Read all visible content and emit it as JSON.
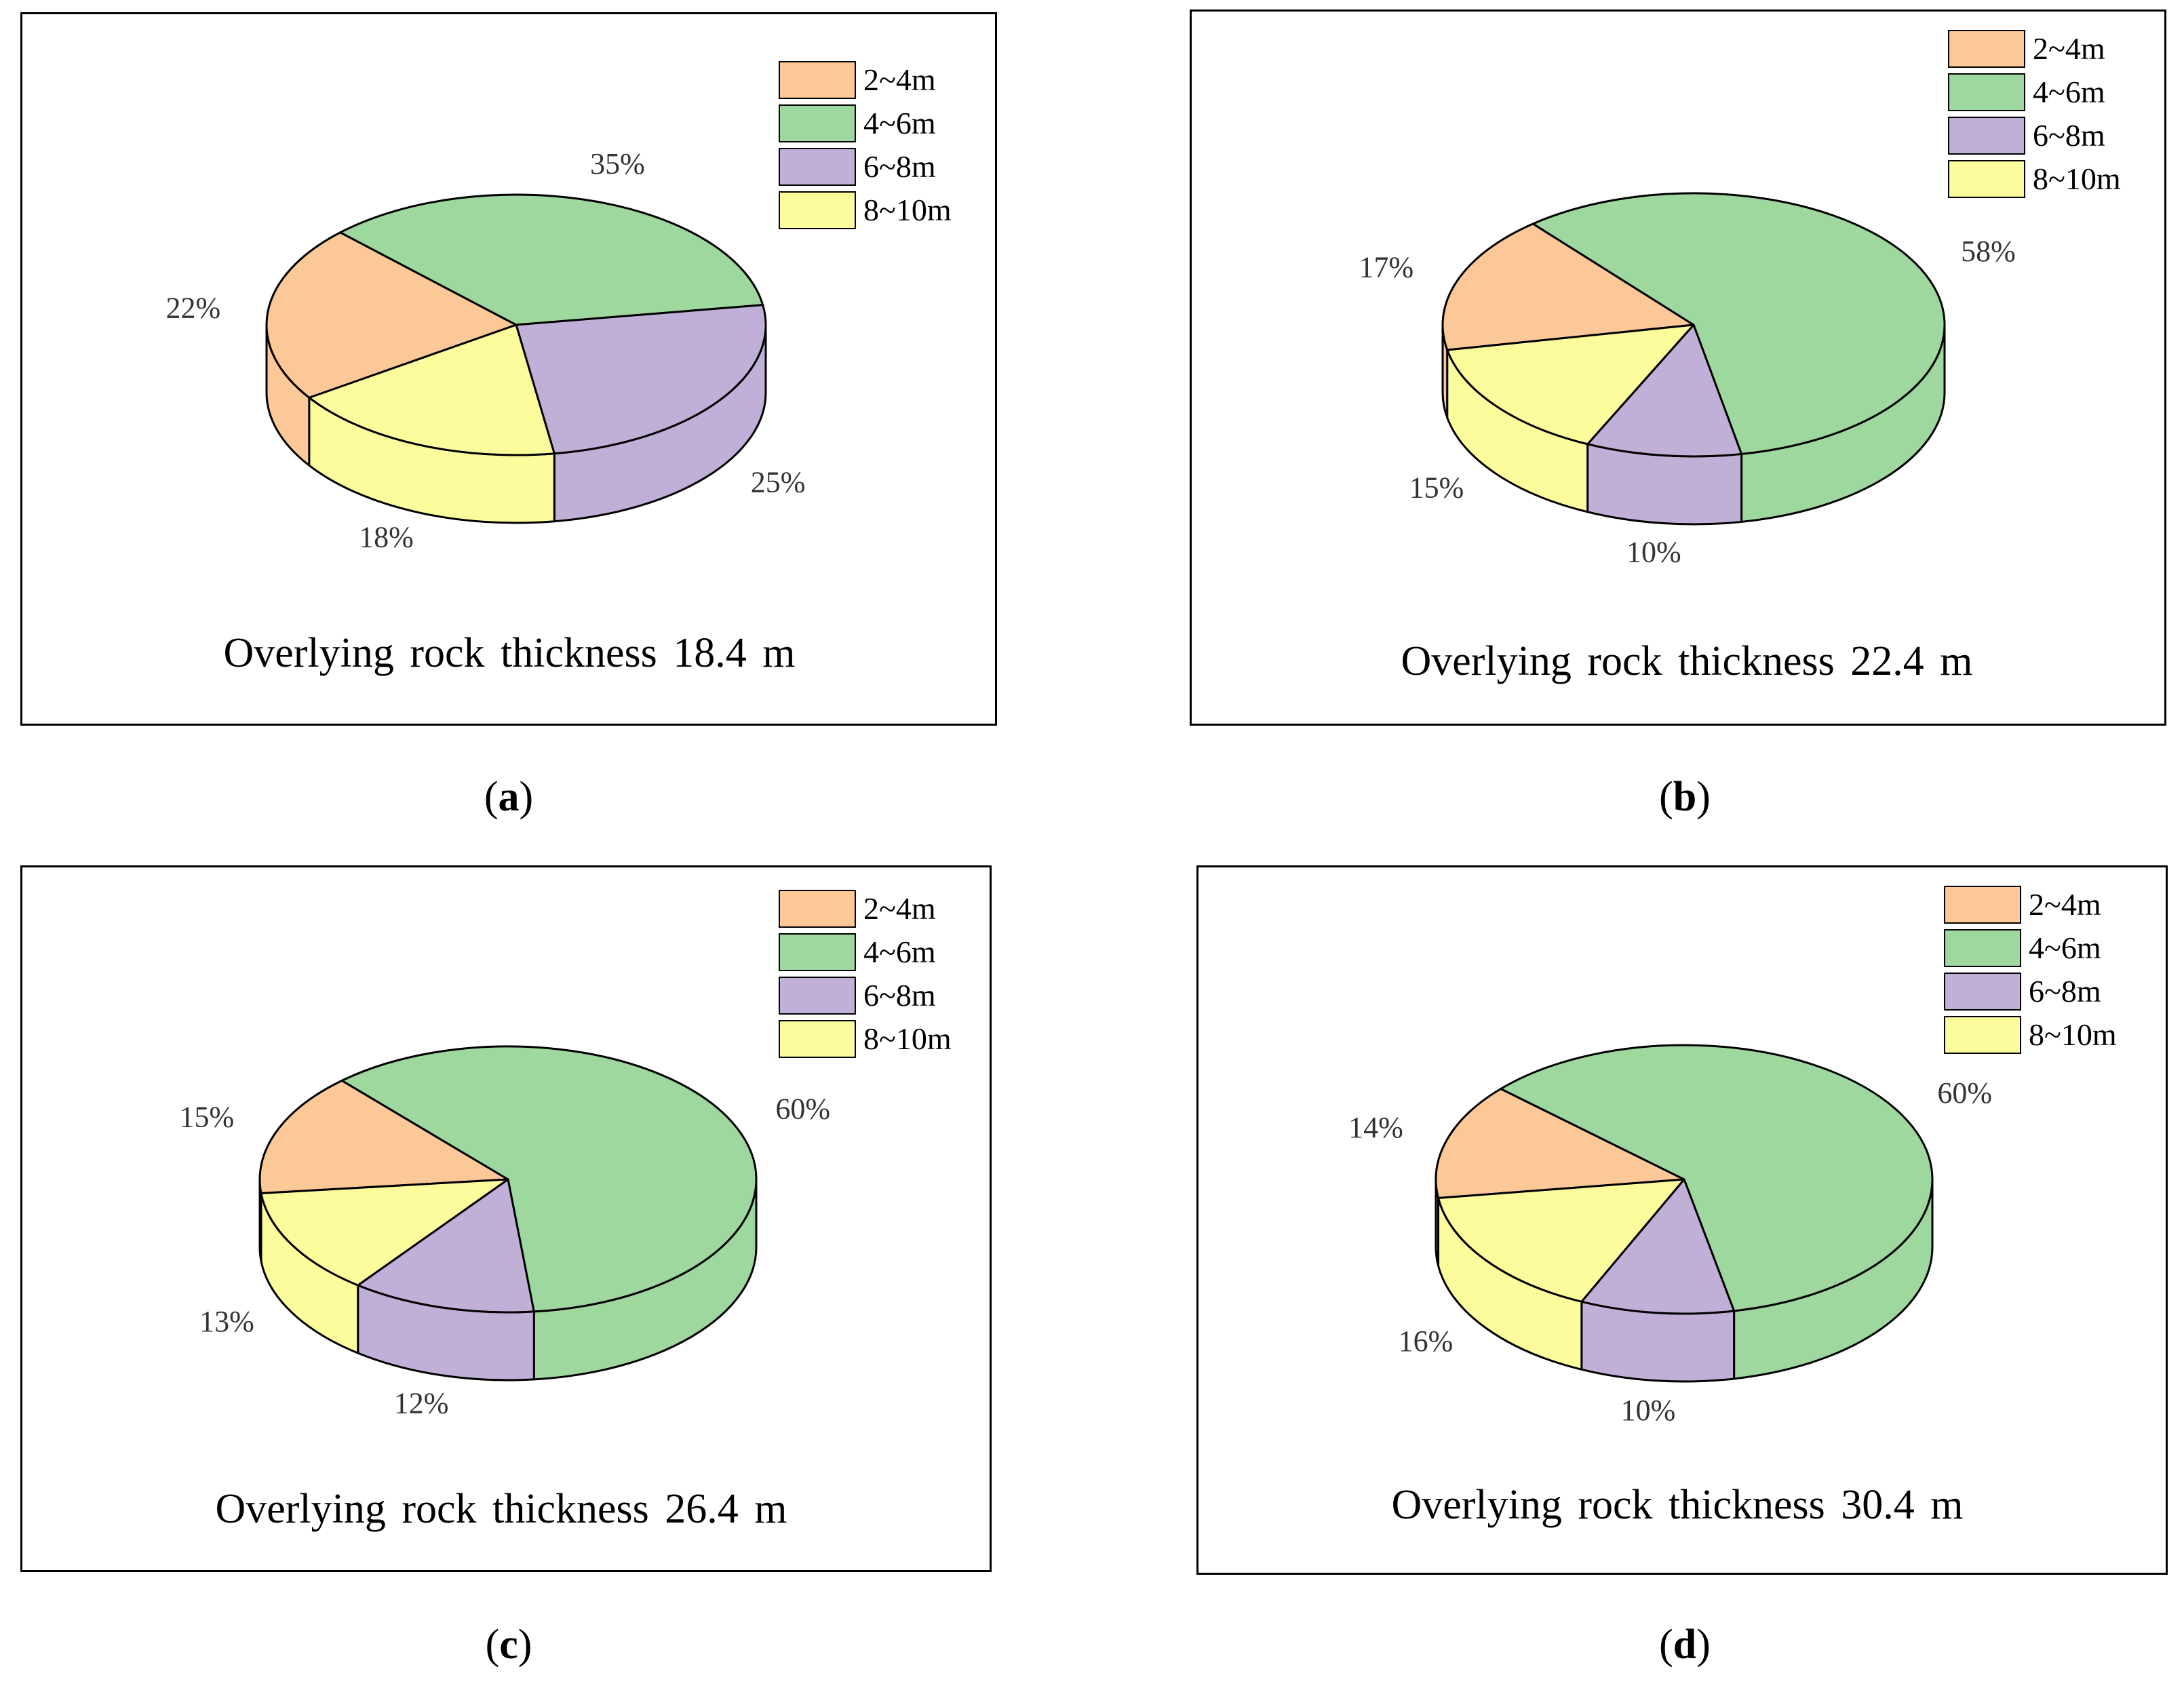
{
  "figure": {
    "chart_data": [
      {
        "type": "pie",
        "style": "3d",
        "panel_label": "a",
        "title": "Overlying rock thickness 18.4 m",
        "legend": [
          "2~4m",
          "4~6m",
          "6~8m",
          "8~10m"
        ],
        "categories": [
          "2~4m",
          "4~6m",
          "6~8m",
          "8~10m"
        ],
        "values": [
          22,
          35,
          25,
          18
        ],
        "labels": [
          "22%",
          "35%",
          "25%",
          "18%"
        ],
        "legend_position": "top-right"
      },
      {
        "type": "pie",
        "style": "3d",
        "panel_label": "b",
        "title": "Overlying rock thickness 22.4 m",
        "legend": [
          "2~4m",
          "4~6m",
          "6~8m",
          "8~10m"
        ],
        "categories": [
          "2~4m",
          "4~6m",
          "6~8m",
          "8~10m"
        ],
        "values": [
          17,
          58,
          10,
          15
        ],
        "labels": [
          "17%",
          "58%",
          "10%",
          "15%"
        ],
        "legend_position": "top-right"
      },
      {
        "type": "pie",
        "style": "3d",
        "panel_label": "c",
        "title": "Overlying rock thickness 26.4 m",
        "legend": [
          "2~4m",
          "4~6m",
          "6~8m",
          "8~10m"
        ],
        "categories": [
          "2~4m",
          "4~6m",
          "6~8m",
          "8~10m"
        ],
        "values": [
          15,
          60,
          12,
          13
        ],
        "labels": [
          "15%",
          "60%",
          "12%",
          "13%"
        ],
        "legend_position": "top-right"
      },
      {
        "type": "pie",
        "style": "3d",
        "panel_label": "d",
        "title": "Overlying rock thickness 30.4 m",
        "legend": [
          "2~4m",
          "4~6m",
          "6~8m",
          "8~10m"
        ],
        "categories": [
          "2~4m",
          "4~6m",
          "6~8m",
          "8~10m"
        ],
        "values": [
          14,
          60,
          10,
          16
        ],
        "labels": [
          "14%",
          "60%",
          "10%",
          "16%"
        ],
        "legend_position": "top-right"
      }
    ],
    "colors": {
      "2~4m": "#fcc898",
      "4~6m": "#9ed89e",
      "6~8m": "#c0b0d8",
      "8~10m": "#fcfc9c",
      "outline": "#000000",
      "text": "#000000",
      "label": "#333333"
    }
  },
  "captions": [
    {
      "open": "(",
      "letter": "a",
      "close": ")"
    },
    {
      "open": "(",
      "letter": "b",
      "close": ")"
    },
    {
      "open": "(",
      "letter": "c",
      "close": ")"
    },
    {
      "open": "(",
      "letter": "d",
      "close": ")"
    }
  ]
}
